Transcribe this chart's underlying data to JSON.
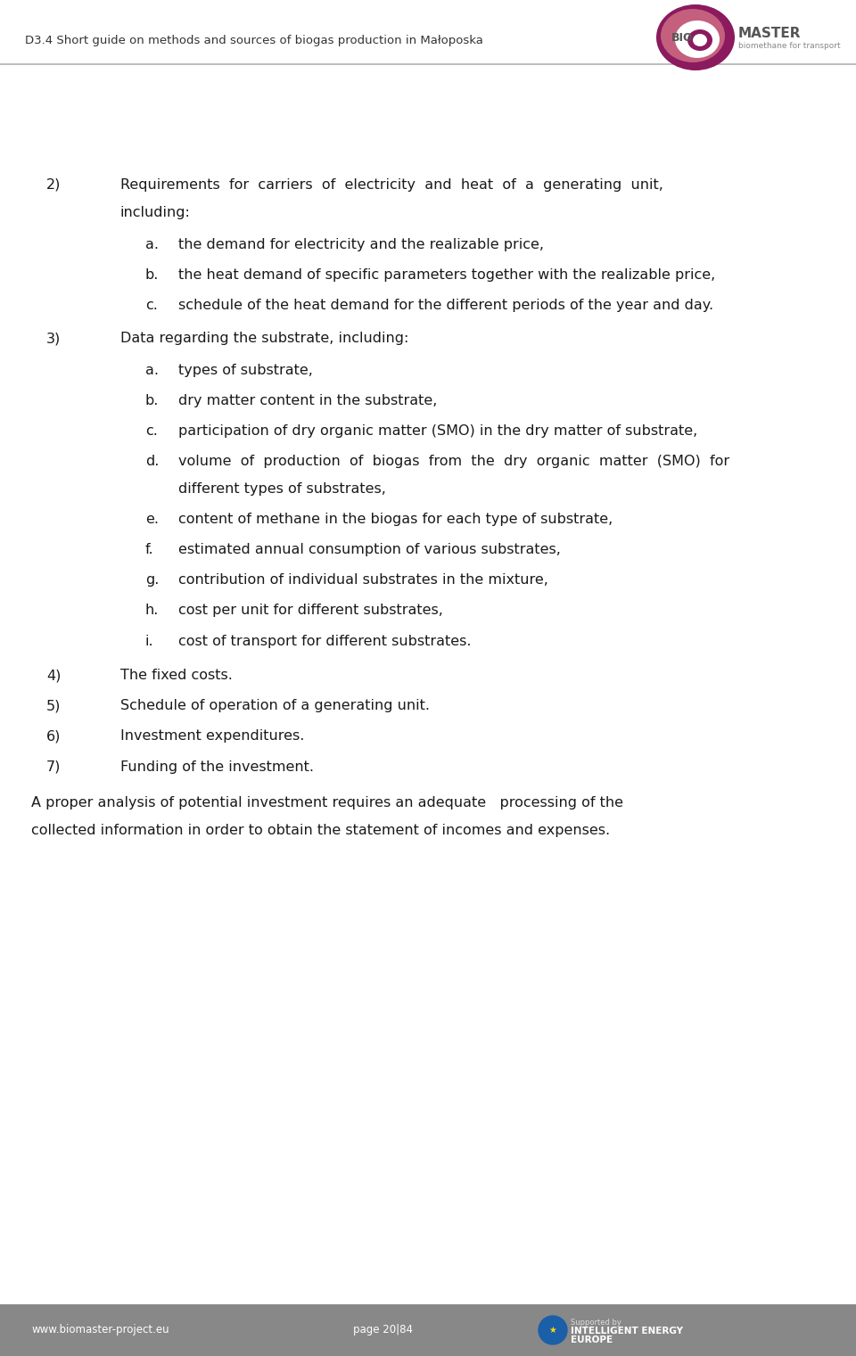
{
  "header_text": "D3.4 Short guide on methods and sources of biogas production in Małoposka",
  "footer_left": "www.biomaster-project.eu",
  "footer_center": "page 20|84",
  "bg_color": "#ffffff",
  "text_color": "#1a1a1a",
  "font_size": 11.5,
  "header_font_size": 9.5,
  "items": [
    {
      "type": "num",
      "num": "2)",
      "text1": "Requirements  for  carriers  of  electricity  and  heat  of  a  generating  unit,",
      "text2": "including:"
    },
    {
      "type": "letter",
      "letter": "a.",
      "text": "the demand for electricity and the realizable price,"
    },
    {
      "type": "letter",
      "letter": "b.",
      "text": "the heat demand of specific parameters together with the realizable price,"
    },
    {
      "type": "letter",
      "letter": "c.",
      "text": "schedule of the heat demand for the different periods of the year and day."
    },
    {
      "type": "num",
      "num": "3)",
      "text1": "Data regarding the substrate, including:",
      "text2": null
    },
    {
      "type": "letter",
      "letter": "a.",
      "text": "types of substrate,"
    },
    {
      "type": "letter",
      "letter": "b.",
      "text": "dry matter content in the substrate,"
    },
    {
      "type": "letter",
      "letter": "c.",
      "text": "participation of dry organic matter (SMO) in the dry matter of substrate,"
    },
    {
      "type": "letter2",
      "letter": "d.",
      "text1": "volume  of  production  of  biogas  from  the  dry  organic  matter  (SMO)  for",
      "text2": "different types of substrates,"
    },
    {
      "type": "letter",
      "letter": "e.",
      "text": "content of methane in the biogas for each type of substrate,"
    },
    {
      "type": "letter",
      "letter": "f.",
      "text": "estimated annual consumption of various substrates,"
    },
    {
      "type": "letter",
      "letter": "g.",
      "text": "contribution of individual substrates in the mixture,"
    },
    {
      "type": "letter",
      "letter": "h.",
      "text": "cost per unit for different substrates,"
    },
    {
      "type": "letter",
      "letter": "i.",
      "text": "cost of transport for different substrates."
    },
    {
      "type": "num_single",
      "num": "4)",
      "text": "The fixed costs."
    },
    {
      "type": "num_single",
      "num": "5)",
      "text": "Schedule of operation of a generating unit."
    },
    {
      "type": "num_single",
      "num": "6)",
      "text": "Investment expenditures."
    },
    {
      "type": "num_single",
      "num": "7)",
      "text": "Funding of the investment."
    }
  ],
  "closing1": "A proper analysis of potential investment requires an adequate   processing of the",
  "closing2": "collected information in order to obtain the statement of incomes and expenses."
}
